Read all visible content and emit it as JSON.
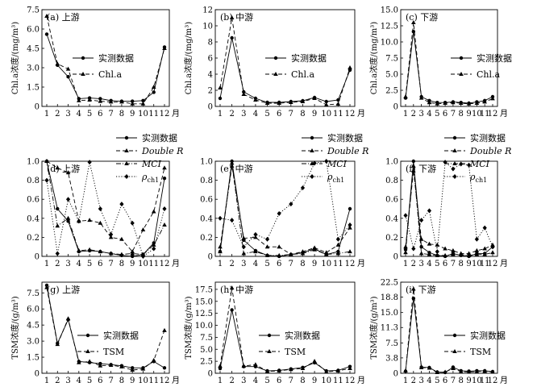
{
  "month_unit": "月",
  "legend_measured": "实测数据",
  "chart_data": [
    {
      "type": "line",
      "panel": "(a) 上游",
      "ylabel": "Chl.a浓度/(mg/m³)",
      "ylim": [
        0,
        7.5
      ],
      "yticks": [
        "0",
        "1.5",
        "3.0",
        "4.5",
        "6.0",
        "7.5"
      ],
      "x": [
        1,
        2,
        3,
        4,
        5,
        6,
        7,
        8,
        9,
        10,
        11,
        12
      ],
      "legend": [
        "实测数据",
        "Chl.a"
      ],
      "series": [
        {
          "name": "实测数据",
          "style": "solid",
          "marker": "circle",
          "values": [
            5.6,
            3.2,
            2.3,
            0.6,
            0.65,
            0.6,
            0.45,
            0.4,
            0.4,
            0.45,
            1.1,
            4.6
          ]
        },
        {
          "name": "Chl.a",
          "style": "dashed",
          "marker": "triangle",
          "values": [
            7.0,
            3.3,
            2.9,
            0.45,
            0.5,
            0.4,
            0.35,
            0.35,
            0.2,
            0.2,
            1.5,
            4.5
          ]
        }
      ]
    },
    {
      "type": "line",
      "panel": "(b) 中游",
      "ylabel": "Chl.a浓度/(mg/m³)",
      "ylim": [
        0,
        12
      ],
      "yticks": [
        "0",
        "2",
        "4",
        "6",
        "8",
        "10",
        "12"
      ],
      "x": [
        1,
        2,
        3,
        4,
        5,
        6,
        7,
        8,
        9,
        10,
        11,
        12
      ],
      "legend": [
        "实测数据",
        "Chl.a"
      ],
      "series": [
        {
          "name": "实测数据",
          "style": "solid",
          "marker": "circle",
          "values": [
            1.0,
            8.5,
            1.8,
            1.0,
            0.5,
            0.5,
            0.6,
            0.7,
            1.1,
            0.6,
            0.8,
            4.5
          ]
        },
        {
          "name": "Chl.a",
          "style": "dashed",
          "marker": "triangle",
          "values": [
            2.3,
            11.0,
            1.5,
            0.8,
            0.4,
            0.4,
            0.5,
            0.6,
            1.0,
            0.2,
            0.3,
            4.8
          ]
        }
      ]
    },
    {
      "type": "line",
      "panel": "(c) 下游",
      "ylabel": "Chl.a浓度/(mg/m³)",
      "ylim": [
        0,
        15
      ],
      "yticks": [
        "0",
        "2.5",
        "5.0",
        "7.5",
        "10.0",
        "12.5",
        "15.0"
      ],
      "x": [
        1,
        2,
        3,
        4,
        5,
        6,
        7,
        8,
        9,
        10,
        11,
        12
      ],
      "legend": [
        "实测数据",
        "Chl.a"
      ],
      "series": [
        {
          "name": "实测数据",
          "style": "solid",
          "marker": "circle",
          "values": [
            1.3,
            11.6,
            1.5,
            0.9,
            0.6,
            0.6,
            0.7,
            0.6,
            0.5,
            0.7,
            0.9,
            1.5
          ]
        },
        {
          "name": "Chl.a",
          "style": "dashed",
          "marker": "triangle",
          "values": [
            1.5,
            13.0,
            1.3,
            0.6,
            0.4,
            0.5,
            0.6,
            0.5,
            0.4,
            0.5,
            0.7,
            1.2
          ]
        }
      ]
    },
    {
      "type": "line",
      "panel": "(d) 上游",
      "ylabel": "",
      "ylim": [
        0,
        1.0
      ],
      "yticks": [
        "0",
        "0.2",
        "0.4",
        "0.6",
        "0.8",
        "1.0"
      ],
      "x": [
        1,
        2,
        3,
        4,
        5,
        6,
        7,
        8,
        9,
        10,
        11,
        12
      ],
      "legend": [
        "实测数据",
        "Double R",
        "MCI",
        "ρch1"
      ],
      "series": [
        {
          "name": "实测数据",
          "style": "solid",
          "marker": "circle",
          "values": [
            1.0,
            0.5,
            0.37,
            0.05,
            0.06,
            0.05,
            0.03,
            0.01,
            0.0,
            0.02,
            0.14,
            0.82
          ]
        },
        {
          "name": "Double R",
          "style": "dashed",
          "marker": "triangle",
          "values": [
            1.0,
            0.93,
            0.88,
            0.37,
            0.38,
            0.35,
            0.2,
            0.18,
            0.05,
            0.28,
            0.47,
            0.93
          ]
        },
        {
          "name": "MCI",
          "style": "dashdot",
          "marker": "triangle",
          "values": [
            1.0,
            0.32,
            0.4,
            0.06,
            0.07,
            0.05,
            0.03,
            0.02,
            0.03,
            0.02,
            0.12,
            0.33
          ]
        },
        {
          "name": "ρch1",
          "style": "dotted",
          "marker": "diamond",
          "values": [
            0.8,
            0.03,
            0.6,
            0.37,
            0.99,
            0.5,
            0.23,
            0.55,
            0.35,
            0.0,
            0.08,
            0.5
          ]
        }
      ]
    },
    {
      "type": "line",
      "panel": "(e) 中游",
      "ylabel": "",
      "ylim": [
        0,
        1.0
      ],
      "yticks": [
        "0",
        "0.2",
        "0.4",
        "0.6",
        "0.8",
        "1.0"
      ],
      "x": [
        1,
        2,
        3,
        4,
        5,
        6,
        7,
        8,
        9,
        10,
        11,
        12
      ],
      "legend": [
        "实测数据",
        "Double R",
        "MCI",
        "ρch1"
      ],
      "series": [
        {
          "name": "实测数据",
          "style": "solid",
          "marker": "circle",
          "values": [
            0.05,
            1.0,
            0.17,
            0.06,
            0.01,
            0.0,
            0.02,
            0.04,
            0.08,
            0.02,
            0.05,
            0.5
          ]
        },
        {
          "name": "Double R",
          "style": "dashed",
          "marker": "triangle",
          "values": [
            0.1,
            0.95,
            0.19,
            0.2,
            0.1,
            0.1,
            0.02,
            0.05,
            0.09,
            0.04,
            0.12,
            0.3
          ]
        },
        {
          "name": "MCI",
          "style": "dashdot",
          "marker": "triangle",
          "values": [
            0.05,
            0.98,
            0.03,
            0.05,
            0.01,
            0.01,
            0.02,
            0.03,
            0.07,
            0.02,
            0.03,
            0.05
          ]
        },
        {
          "name": "ρch1",
          "style": "dotted",
          "marker": "diamond",
          "values": [
            0.4,
            0.38,
            0.1,
            0.23,
            0.18,
            0.45,
            0.55,
            0.72,
            0.98,
            1.0,
            0.18,
            0.33
          ]
        }
      ]
    },
    {
      "type": "line",
      "panel": "(f) 下游",
      "ylabel": "",
      "ylim": [
        0,
        1.0
      ],
      "yticks": [
        "0",
        "0.2",
        "0.4",
        "0.6",
        "0.8",
        "1.0"
      ],
      "x": [
        1,
        2,
        3,
        4,
        5,
        6,
        7,
        8,
        9,
        10,
        11,
        12
      ],
      "legend": [
        "实测数据",
        "Double R",
        "MCI",
        "ρch1"
      ],
      "series": [
        {
          "name": "实测数据",
          "style": "solid",
          "marker": "circle",
          "values": [
            0.07,
            1.0,
            0.1,
            0.04,
            0.01,
            0.0,
            0.03,
            0.01,
            0.0,
            0.03,
            0.03,
            0.1
          ]
        },
        {
          "name": "Double R",
          "style": "dashed",
          "marker": "triangle",
          "values": [
            0.1,
            0.9,
            0.18,
            0.13,
            0.12,
            0.08,
            0.06,
            0.03,
            0.03,
            0.06,
            0.08,
            0.12
          ]
        },
        {
          "name": "MCI",
          "style": "dashdot",
          "marker": "triangle",
          "values": [
            0.04,
            0.95,
            0.03,
            0.02,
            0.01,
            0.01,
            0.02,
            0.02,
            0.01,
            0.02,
            0.02,
            0.04
          ]
        },
        {
          "name": "ρch1",
          "style": "dotted",
          "marker": "diamond",
          "values": [
            0.43,
            0.08,
            0.38,
            0.48,
            0.05,
            0.99,
            0.92,
            0.97,
            0.96,
            0.18,
            0.3,
            0.1
          ]
        }
      ]
    },
    {
      "type": "line",
      "panel": "(g) 上游",
      "ylabel": "TSM浓度/(g/m³)",
      "ylim": [
        0,
        8.5
      ],
      "yticks": [
        "0",
        "1.5",
        "3.0",
        "4.5",
        "6.0",
        "7.5"
      ],
      "x": [
        1,
        2,
        3,
        4,
        5,
        6,
        7,
        8,
        9,
        10,
        11,
        12
      ],
      "legend": [
        "实测数据",
        "TSM"
      ],
      "series": [
        {
          "name": "实测数据",
          "style": "solid",
          "marker": "circle",
          "values": [
            8.2,
            2.8,
            5.0,
            1.1,
            1.0,
            0.9,
            0.8,
            0.7,
            0.5,
            0.5,
            1.1,
            0.5
          ]
        },
        {
          "name": "TSM",
          "style": "dashed",
          "marker": "triangle",
          "values": [
            8.0,
            2.7,
            5.1,
            1.0,
            1.1,
            0.7,
            0.75,
            0.6,
            0.3,
            0.4,
            1.2,
            4.0
          ]
        }
      ]
    },
    {
      "type": "line",
      "panel": "(h) 中游",
      "ylabel": "TSM浓度/(g/m³)",
      "ylim": [
        0,
        19
      ],
      "yticks": [
        "0",
        "2.5",
        "5.0",
        "7.5",
        "10.0",
        "12.5",
        "15.0",
        "17.5"
      ],
      "x": [
        1,
        2,
        3,
        4,
        5,
        6,
        7,
        8,
        9,
        10,
        11,
        12
      ],
      "legend": [
        "实测数据",
        "TSM"
      ],
      "series": [
        {
          "name": "实测数据",
          "style": "solid",
          "marker": "circle",
          "values": [
            1.0,
            13.2,
            1.4,
            1.4,
            0.5,
            0.6,
            0.9,
            1.2,
            2.2,
            0.5,
            0.6,
            1.4
          ]
        },
        {
          "name": "TSM",
          "style": "dashed",
          "marker": "triangle",
          "values": [
            1.5,
            17.8,
            1.5,
            1.8,
            0.4,
            0.5,
            0.8,
            1.0,
            2.5,
            0.3,
            0.5,
            1.0
          ]
        }
      ]
    },
    {
      "type": "line",
      "panel": "(i) 下游",
      "ylabel": "TSM浓度/(g/m³)",
      "ylim": [
        0,
        22.5
      ],
      "yticks": [
        "0",
        "3.8",
        "7.5",
        "11.3",
        "15.0",
        "18.8",
        "22.5"
      ],
      "x": [
        1,
        2,
        3,
        4,
        5,
        6,
        7,
        8,
        9,
        10,
        11,
        12
      ],
      "legend": [
        "实测数据",
        "TSM"
      ],
      "series": [
        {
          "name": "实测数据",
          "style": "solid",
          "marker": "circle",
          "values": [
            0.5,
            18.5,
            1.5,
            1.4,
            0.3,
            0.2,
            1.5,
            0.6,
            0.5,
            0.6,
            0.6,
            0.4
          ]
        },
        {
          "name": "TSM",
          "style": "dashed",
          "marker": "triangle",
          "values": [
            0.6,
            20.8,
            1.4,
            1.3,
            0.2,
            0.3,
            1.2,
            0.4,
            0.3,
            0.4,
            0.5,
            0.3
          ]
        }
      ]
    }
  ]
}
